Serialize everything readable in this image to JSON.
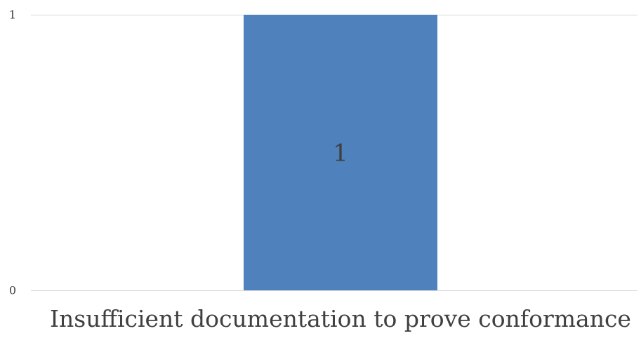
{
  "chart_data": {
    "type": "bar",
    "categories": [
      "Insufficient documentation to prove conformance"
    ],
    "values": [
      1
    ],
    "data_labels": [
      "1"
    ],
    "title": "",
    "xlabel": "",
    "ylabel": "",
    "ylim": [
      0,
      1
    ],
    "yticks": [
      "0",
      "1"
    ],
    "grid": true,
    "legend": "none",
    "colors": {
      "bar": "#4f81bd",
      "gridline": "#d9d9d9",
      "text": "#404040"
    }
  }
}
